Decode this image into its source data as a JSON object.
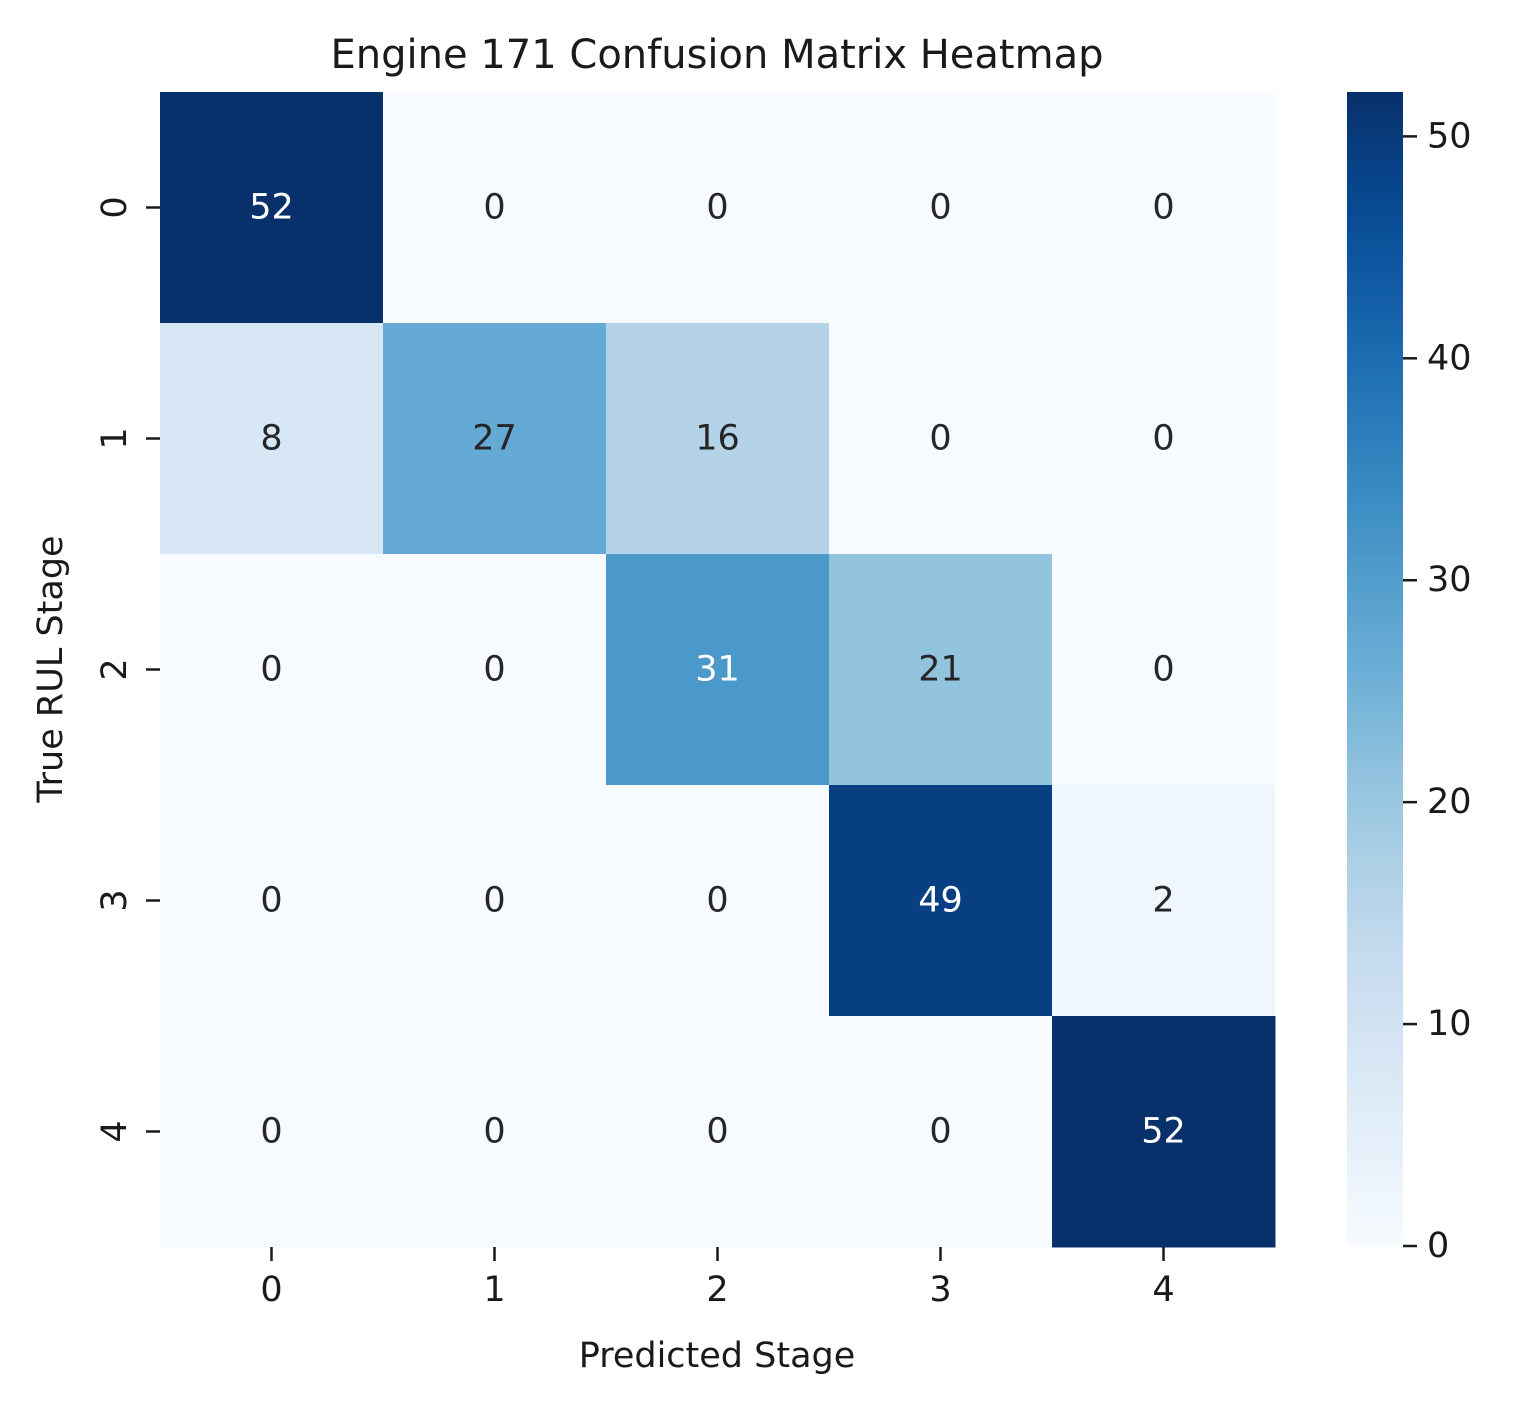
{
  "chart_data": {
    "type": "heatmap",
    "title": "Engine 171 Confusion Matrix Heatmap",
    "xlabel": "Predicted Stage",
    "ylabel": "True RUL Stage",
    "x_categories": [
      "0",
      "1",
      "2",
      "3",
      "4"
    ],
    "y_categories": [
      "0",
      "1",
      "2",
      "3",
      "4"
    ],
    "values": [
      [
        52,
        0,
        0,
        0,
        0
      ],
      [
        8,
        27,
        16,
        0,
        0
      ],
      [
        0,
        0,
        31,
        21,
        0
      ],
      [
        0,
        0,
        0,
        49,
        2
      ],
      [
        0,
        0,
        0,
        0,
        52
      ]
    ],
    "colorbar": {
      "colormap": "Blues",
      "range": [
        0,
        52
      ],
      "ticks": [
        0,
        10,
        20,
        30,
        40,
        50
      ],
      "tick_labels": [
        "0",
        "10",
        "20",
        "30",
        "40",
        "50"
      ]
    },
    "annotations": true,
    "grid": false
  }
}
